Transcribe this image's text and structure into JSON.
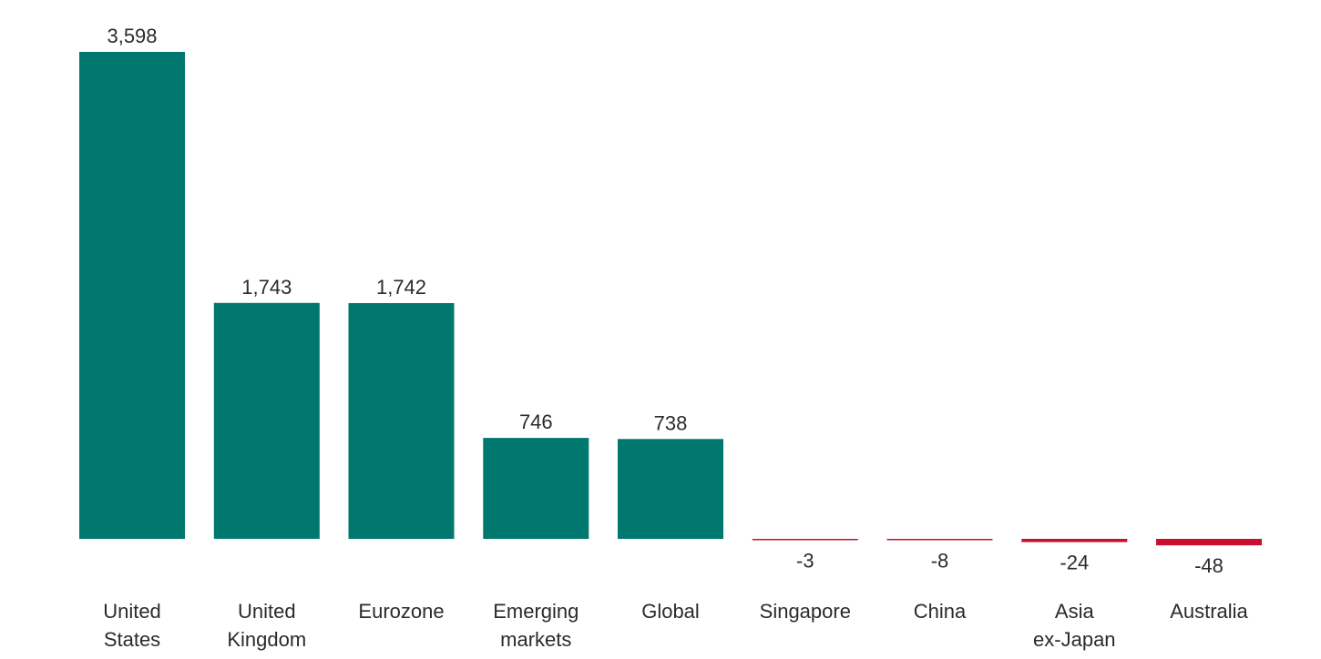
{
  "chart_data": {
    "type": "bar",
    "categories": [
      [
        "United",
        "States"
      ],
      [
        "United",
        "Kingdom"
      ],
      [
        "Eurozone"
      ],
      [
        "Emerging",
        "markets"
      ],
      [
        "Global"
      ],
      [
        "Singapore"
      ],
      [
        "China"
      ],
      [
        "Asia",
        "ex-Japan"
      ],
      [
        "Australia"
      ]
    ],
    "values": [
      3598,
      1743,
      1742,
      746,
      738,
      -3,
      -8,
      -24,
      -48
    ],
    "value_labels": [
      "3,598",
      "1,743",
      "1,742",
      "746",
      "738",
      "-3",
      "-8",
      "-24",
      "-48"
    ],
    "title": "",
    "xlabel": "",
    "ylabel": "",
    "ylim": [
      -48,
      3598
    ],
    "grid": false,
    "legend": "none",
    "colors": {
      "positive": "#00786f",
      "negative": "#c8102e",
      "text": "#2b2b2b"
    }
  }
}
